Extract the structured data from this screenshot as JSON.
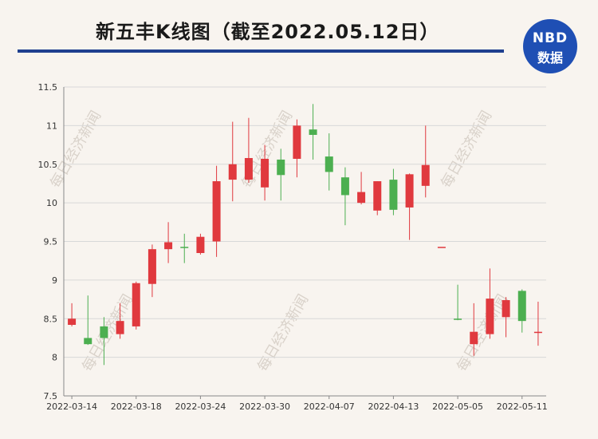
{
  "header": {
    "title": "新五丰K线图（截至2022.05.12日）",
    "logo_top": "NBD",
    "logo_bottom": "数据"
  },
  "watermark": "每日经济新闻",
  "colors": {
    "up": "#e0393e",
    "down": "#4caf50",
    "axis": "#888888",
    "grid": "#d8d8d8",
    "title_rule": "#1f3f8f",
    "logo": "#1f4fb4"
  },
  "chart_data": {
    "type": "candlestick",
    "ylim": [
      7.5,
      11.5
    ],
    "yticks": [
      7.5,
      8,
      8.5,
      9,
      9.5,
      10,
      10.5,
      11,
      11.5
    ],
    "x_labels": [
      "2022-03-14",
      "2022-03-18",
      "2022-03-24",
      "2022-03-30",
      "2022-04-07",
      "2022-04-13",
      "2022-05-05",
      "2022-05-11"
    ],
    "grid": "horizontal",
    "candles": [
      {
        "date": "2022-03-14",
        "open": 8.42,
        "high": 8.7,
        "low": 8.4,
        "close": 8.5
      },
      {
        "date": "2022-03-15",
        "open": 8.25,
        "high": 8.8,
        "low": 8.16,
        "close": 8.17
      },
      {
        "date": "2022-03-16",
        "open": 8.4,
        "high": 8.52,
        "low": 7.9,
        "close": 8.25
      },
      {
        "date": "2022-03-17",
        "open": 8.3,
        "high": 8.7,
        "low": 8.24,
        "close": 8.47
      },
      {
        "date": "2022-03-18",
        "open": 8.4,
        "high": 8.98,
        "low": 8.36,
        "close": 8.96
      },
      {
        "date": "2022-03-21",
        "open": 8.95,
        "high": 9.46,
        "low": 8.78,
        "close": 9.4
      },
      {
        "date": "2022-03-22",
        "open": 9.4,
        "high": 9.75,
        "low": 9.22,
        "close": 9.49
      },
      {
        "date": "2022-03-23",
        "open": 9.43,
        "high": 9.6,
        "low": 9.22,
        "close": 9.42
      },
      {
        "date": "2022-03-24",
        "open": 9.35,
        "high": 9.6,
        "low": 9.33,
        "close": 9.56
      },
      {
        "date": "2022-03-25",
        "open": 9.5,
        "high": 10.48,
        "low": 9.3,
        "close": 10.28
      },
      {
        "date": "2022-03-28",
        "open": 10.3,
        "high": 11.05,
        "low": 10.02,
        "close": 10.5
      },
      {
        "date": "2022-03-29",
        "open": 10.3,
        "high": 11.1,
        "low": 10.26,
        "close": 10.58
      },
      {
        "date": "2022-03-30",
        "open": 10.2,
        "high": 10.75,
        "low": 10.03,
        "close": 10.57
      },
      {
        "date": "2022-03-31",
        "open": 10.56,
        "high": 10.7,
        "low": 10.03,
        "close": 10.36
      },
      {
        "date": "2022-04-01",
        "open": 10.57,
        "high": 11.08,
        "low": 10.33,
        "close": 11.0
      },
      {
        "date": "2022-04-06",
        "open": 10.95,
        "high": 11.28,
        "low": 10.56,
        "close": 10.88
      },
      {
        "date": "2022-04-07",
        "open": 10.6,
        "high": 10.9,
        "low": 10.16,
        "close": 10.4
      },
      {
        "date": "2022-04-08",
        "open": 10.33,
        "high": 10.46,
        "low": 9.71,
        "close": 10.1
      },
      {
        "date": "2022-04-11",
        "open": 10.0,
        "high": 10.4,
        "low": 9.98,
        "close": 10.14
      },
      {
        "date": "2022-04-12",
        "open": 9.9,
        "high": 10.28,
        "low": 9.84,
        "close": 10.28
      },
      {
        "date": "2022-04-13",
        "open": 10.3,
        "high": 10.44,
        "low": 9.84,
        "close": 9.91
      },
      {
        "date": "2022-04-14",
        "open": 9.94,
        "high": 10.38,
        "low": 9.52,
        "close": 10.37
      },
      {
        "date": "2022-04-15",
        "open": 10.22,
        "high": 11.0,
        "low": 10.07,
        "close": 10.49
      },
      {
        "date": "2022-04-18",
        "open": 9.43,
        "high": 9.43,
        "low": 9.43,
        "close": 9.43
      },
      {
        "date": "2022-05-05",
        "open": 8.5,
        "high": 8.94,
        "low": 8.48,
        "close": 8.49
      },
      {
        "date": "2022-05-06",
        "open": 8.17,
        "high": 8.7,
        "low": 8.02,
        "close": 8.33
      },
      {
        "date": "2022-05-09",
        "open": 8.3,
        "high": 9.15,
        "low": 8.24,
        "close": 8.76
      },
      {
        "date": "2022-05-10",
        "open": 8.52,
        "high": 8.78,
        "low": 8.26,
        "close": 8.74
      },
      {
        "date": "2022-05-11",
        "open": 8.86,
        "high": 8.88,
        "low": 8.32,
        "close": 8.47
      },
      {
        "date": "2022-05-12",
        "open": 8.33,
        "high": 8.72,
        "low": 8.15,
        "close": 8.33
      }
    ]
  }
}
